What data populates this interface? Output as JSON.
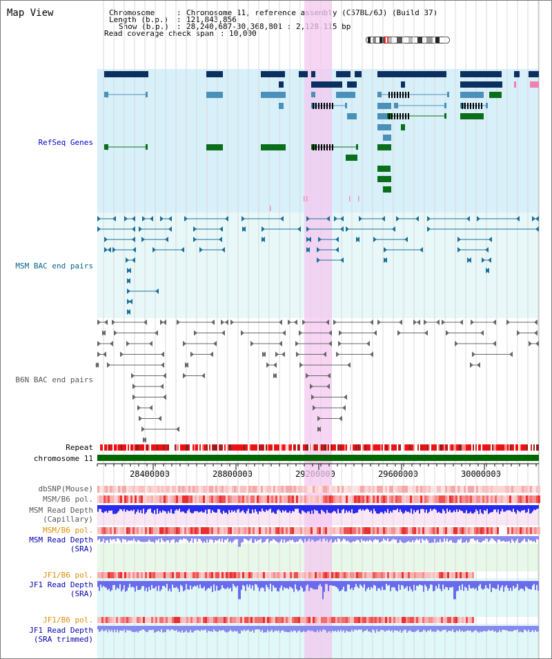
{
  "header": {
    "title": "Map View",
    "chromosome_label": "Chromosome",
    "chromosome_value": "Chromosome 11, reference assembly (C57BL/6J) (Build 37)",
    "length_label": "Length (b.p.)",
    "length_value": "121,843,856",
    "show_label": "Show (b.p.)",
    "show_value": "28,240,687-30,368,801 : 2,128,115 bp",
    "coverage_label": "Read coverage check span",
    "coverage_value": "10,000"
  },
  "tracks": {
    "refseq": "RefSeq Genes",
    "msm_bac": "MSM BAC end pairs",
    "b6n_bac": "B6N BAC end pairs",
    "repeat": "Repeat",
    "chromosome": "chromosome 11",
    "dbsnp": "dbSNP(Mouse)",
    "msm_pol": "MSM/B6 pol.",
    "msm_depth_cap_1": "MSM Read Depth",
    "msm_depth_cap_2": "(Capillary)",
    "msm_pol2": "MSM/B6 pol.",
    "msm_depth_sra_1": "MSM Read Depth",
    "msm_depth_sra_2": "(SRA)",
    "jf1_pol": "JF1/B6 pol.",
    "jf1_depth_1": "JF1 Read Depth",
    "jf1_depth_2": "(SRA)",
    "jf1_pol2": "JF1/B6 pol.",
    "jf1_trim_1": "JF1 Read Depth",
    "jf1_trim_2": "(SRA trimmed)"
  },
  "axis": {
    "ticks": [
      "28400000",
      "28800000",
      "29200000",
      "29600000",
      "30000000"
    ]
  },
  "colors": {
    "refseq_bg": "#d8f0fa",
    "bac_bg": "#e8f8f8",
    "highlight": "#f4c8f0",
    "navy": "#0b3060",
    "steel": "#4a90b8",
    "green": "#0a6e1a",
    "chromosome_bar": "#006600",
    "depth_blue": "#2a2aee",
    "depth_light": "#8888ee"
  }
}
